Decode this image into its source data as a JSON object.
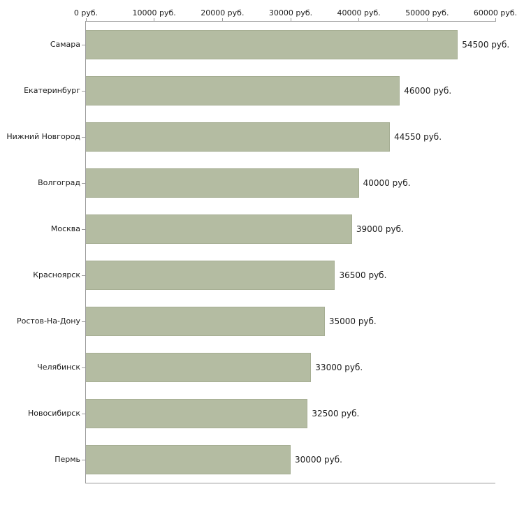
{
  "chart_data": {
    "type": "bar",
    "orientation": "horizontal",
    "title": "",
    "xlabel": "",
    "ylabel": "",
    "categories": [
      "Самара",
      "Екатеринбург",
      "Нижний Новгород",
      "Волгоград",
      "Москва",
      "Красноярск",
      "Ростов-На-Дону",
      "Челябинск",
      "Новосибирск",
      "Пермь"
    ],
    "values": [
      54500,
      46000,
      44550,
      40000,
      39000,
      36500,
      35000,
      33000,
      32500,
      30000
    ],
    "value_labels": [
      "54500 руб.",
      "46000 руб.",
      "44550 руб.",
      "40000 руб.",
      "39000 руб.",
      "36500 руб.",
      "35000 руб.",
      "33000 руб.",
      "32500 руб.",
      "30000 руб."
    ],
    "x_axis": {
      "position": "top",
      "min": 0,
      "max": 60000,
      "tick_interval": 10000,
      "tick_labels": [
        "0 руб.",
        "10000 руб.",
        "20000 руб.",
        "30000 руб.",
        "40000 руб.",
        "50000 руб.",
        "60000 руб."
      ]
    },
    "grid": false,
    "legend": false,
    "colors": {
      "bar_fill": "#b4bca2",
      "bar_border": "#a6ae93",
      "axis_line": "#9a9a9a",
      "text": "#1c1c1c",
      "background": "#ffffff"
    }
  }
}
